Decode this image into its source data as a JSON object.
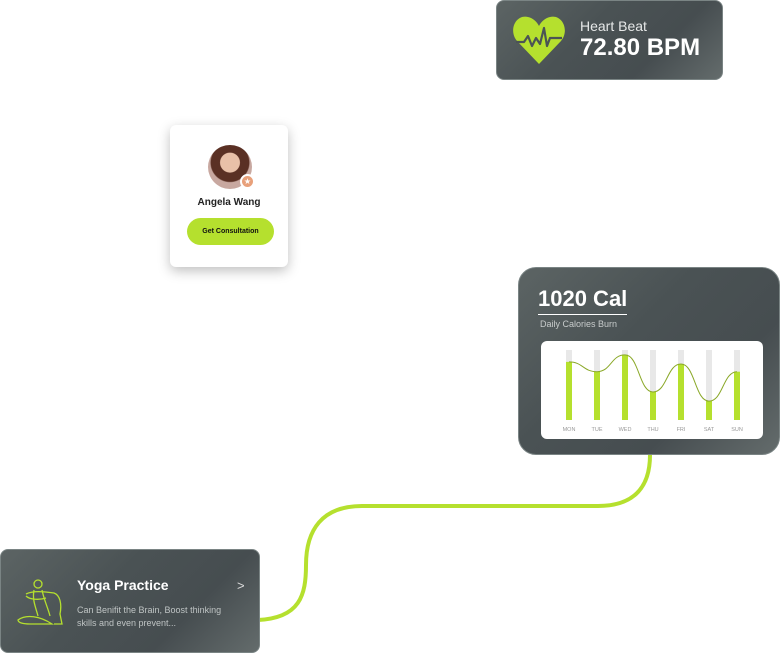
{
  "heart_card": {
    "label": "Heart Beat",
    "value": "72.80 BPM",
    "icon": "heart-pulse-icon"
  },
  "profile": {
    "name": "Angela Wang",
    "button": "Get Consultation",
    "badge_icon": "star-icon"
  },
  "calories": {
    "value": "1020 Cal",
    "subtitle": "Daily Calories Burn"
  },
  "chart_data": {
    "type": "bar",
    "categories": [
      "MON",
      "TUE",
      "WED",
      "THU",
      "FRI",
      "SAT",
      "SUN"
    ],
    "values": [
      0.83,
      0.69,
      0.93,
      0.4,
      0.8,
      0.27,
      0.69
    ],
    "ylim": [
      0,
      1
    ],
    "overlay": "smooth line through bar tops",
    "grid": false
  },
  "yoga": {
    "title": "Yoga Practice",
    "description": "Can Benifit the Brain, Boost thinking skills and even prevent...",
    "chevron": ">",
    "icon": "yoga-pose-icon"
  },
  "colors": {
    "accent": "#b5e02e",
    "card": "#4b5355",
    "track": "#e8e8e8"
  }
}
